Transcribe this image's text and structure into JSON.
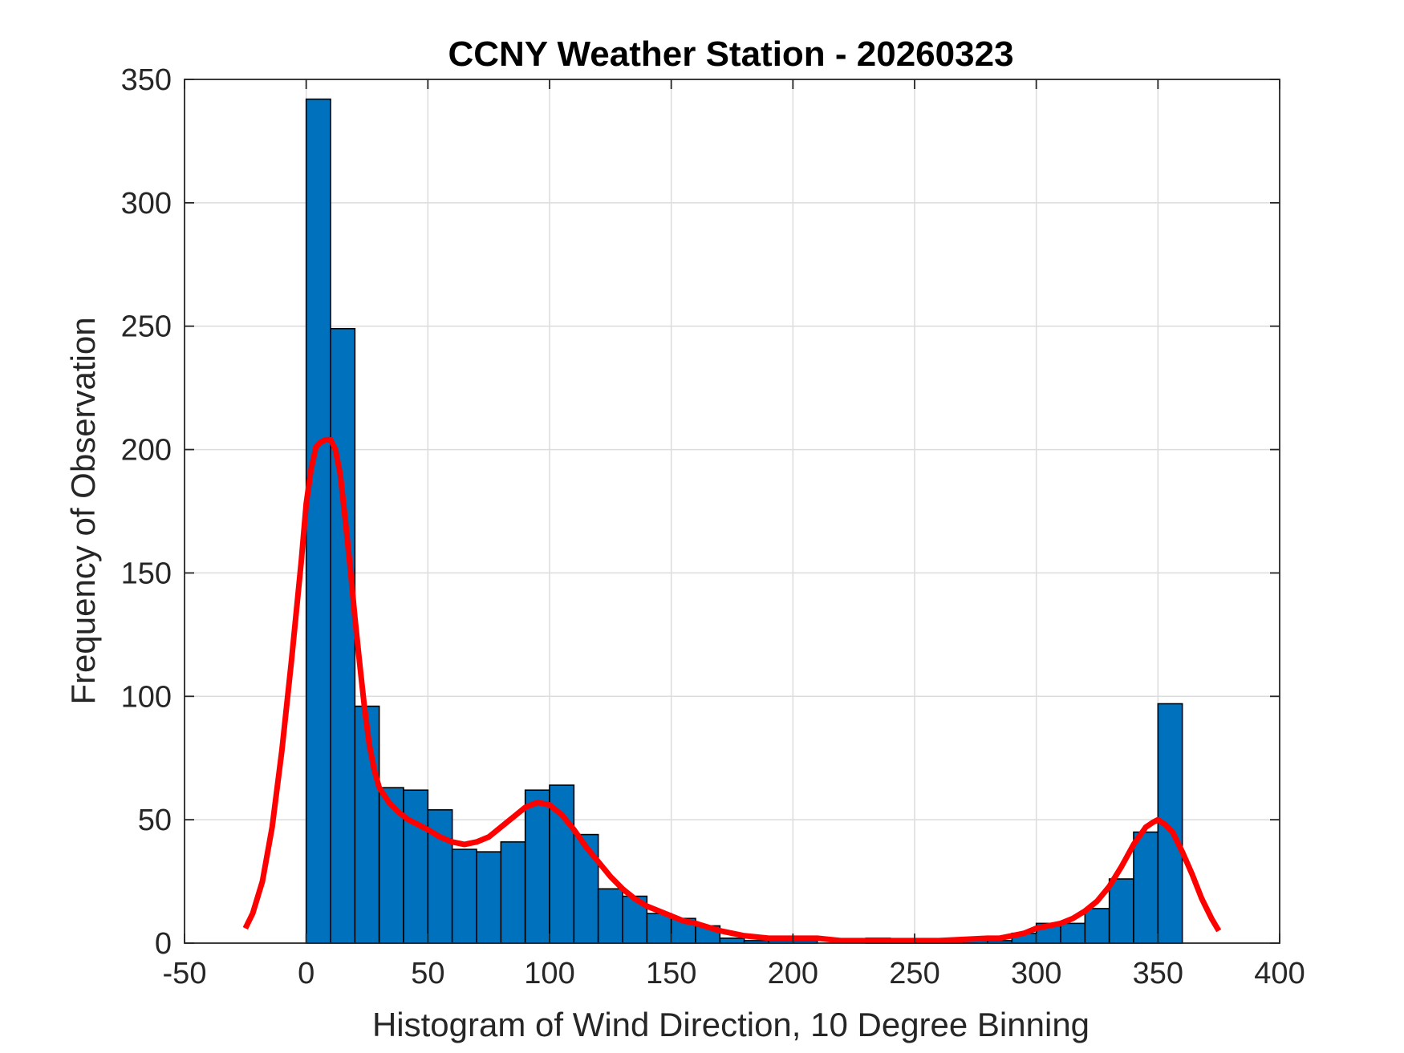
{
  "chart_data": {
    "type": "bar",
    "title": "CCNY Weather Station - 20260323",
    "xlabel": "Histogram of Wind Direction, 10 Degree Binning",
    "ylabel": "Frequency of Observation",
    "xlim": [
      -50,
      400
    ],
    "ylim": [
      0,
      350
    ],
    "xticks": [
      -50,
      0,
      50,
      100,
      150,
      200,
      250,
      300,
      350,
      400
    ],
    "yticks": [
      0,
      50,
      100,
      150,
      200,
      250,
      300,
      350
    ],
    "grid": true,
    "bin_width": 10,
    "bins": [
      {
        "start": 0,
        "value": 342
      },
      {
        "start": 10,
        "value": 249
      },
      {
        "start": 20,
        "value": 96
      },
      {
        "start": 30,
        "value": 63
      },
      {
        "start": 40,
        "value": 62
      },
      {
        "start": 50,
        "value": 54
      },
      {
        "start": 60,
        "value": 38
      },
      {
        "start": 70,
        "value": 37
      },
      {
        "start": 80,
        "value": 41
      },
      {
        "start": 90,
        "value": 62
      },
      {
        "start": 100,
        "value": 64
      },
      {
        "start": 110,
        "value": 44
      },
      {
        "start": 120,
        "value": 22
      },
      {
        "start": 130,
        "value": 19
      },
      {
        "start": 140,
        "value": 12
      },
      {
        "start": 150,
        "value": 10
      },
      {
        "start": 160,
        "value": 7
      },
      {
        "start": 170,
        "value": 2
      },
      {
        "start": 180,
        "value": 1
      },
      {
        "start": 190,
        "value": 1
      },
      {
        "start": 200,
        "value": 1
      },
      {
        "start": 210,
        "value": 0
      },
      {
        "start": 220,
        "value": 0
      },
      {
        "start": 230,
        "value": 2
      },
      {
        "start": 240,
        "value": 1
      },
      {
        "start": 250,
        "value": 1
      },
      {
        "start": 260,
        "value": 1
      },
      {
        "start": 270,
        "value": 1
      },
      {
        "start": 280,
        "value": 1
      },
      {
        "start": 290,
        "value": 4
      },
      {
        "start": 300,
        "value": 8
      },
      {
        "start": 310,
        "value": 8
      },
      {
        "start": 320,
        "value": 14
      },
      {
        "start": 330,
        "value": 26
      },
      {
        "start": 340,
        "value": 45
      },
      {
        "start": 350,
        "value": 97
      }
    ],
    "fit_curve": {
      "x": [
        -25,
        -22,
        -18,
        -14,
        -10,
        -6,
        -2,
        0,
        2,
        4,
        6,
        8,
        10,
        12,
        14,
        16,
        18,
        20,
        22,
        24,
        26,
        28,
        30,
        34,
        38,
        42,
        46,
        50,
        55,
        60,
        65,
        70,
        75,
        80,
        85,
        90,
        95,
        100,
        105,
        110,
        115,
        120,
        125,
        130,
        135,
        140,
        145,
        150,
        155,
        160,
        170,
        180,
        190,
        200,
        210,
        220,
        230,
        240,
        250,
        260,
        270,
        280,
        285,
        290,
        295,
        300,
        305,
        310,
        315,
        320,
        325,
        330,
        335,
        340,
        345,
        348,
        350,
        353,
        356,
        360,
        364,
        368,
        372,
        375
      ],
      "y": [
        6,
        12,
        25,
        47,
        78,
        115,
        155,
        178,
        192,
        201,
        203,
        204,
        204,
        200,
        190,
        172,
        153,
        132,
        113,
        95,
        80,
        70,
        63,
        57,
        53,
        50,
        48,
        46,
        43,
        41,
        40,
        41,
        43,
        47,
        51,
        55,
        57,
        56,
        52,
        46,
        39,
        33,
        27,
        22,
        18,
        15,
        13,
        11,
        9,
        8,
        5,
        3,
        2,
        2,
        2,
        1,
        1,
        1,
        1,
        1,
        1.5,
        2,
        2,
        3,
        4,
        6,
        7,
        8,
        10,
        13,
        17,
        23,
        31,
        40,
        47,
        49,
        50,
        48,
        45,
        37,
        28,
        18,
        10,
        5
      ]
    }
  },
  "colors": {
    "bar_fill": "#0072BD",
    "bar_edge": "#000000",
    "fit_line": "#FF0000",
    "grid": "#dcdcdc",
    "axis": "#262626"
  }
}
